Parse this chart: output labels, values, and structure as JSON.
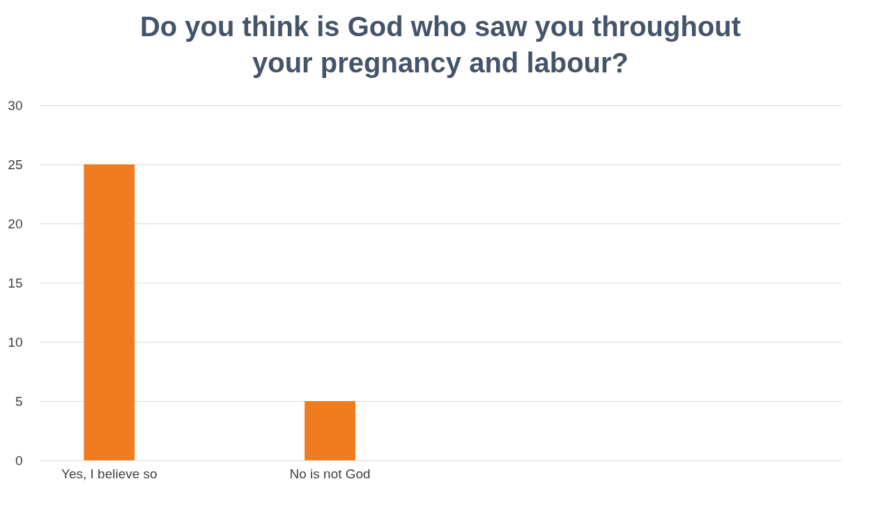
{
  "chart_data": {
    "type": "bar",
    "title": "Do you think is God who saw you throughout\nyour pregnancy and labour?",
    "categories": [
      "Yes, I believe so",
      "No is not God",
      null,
      null
    ],
    "values": [
      25,
      5,
      null,
      null
    ],
    "color": "#f07c22",
    "ylim": [
      0,
      30
    ],
    "yticks": [
      0,
      5,
      10,
      15,
      20,
      25,
      30
    ],
    "grid": "y"
  }
}
